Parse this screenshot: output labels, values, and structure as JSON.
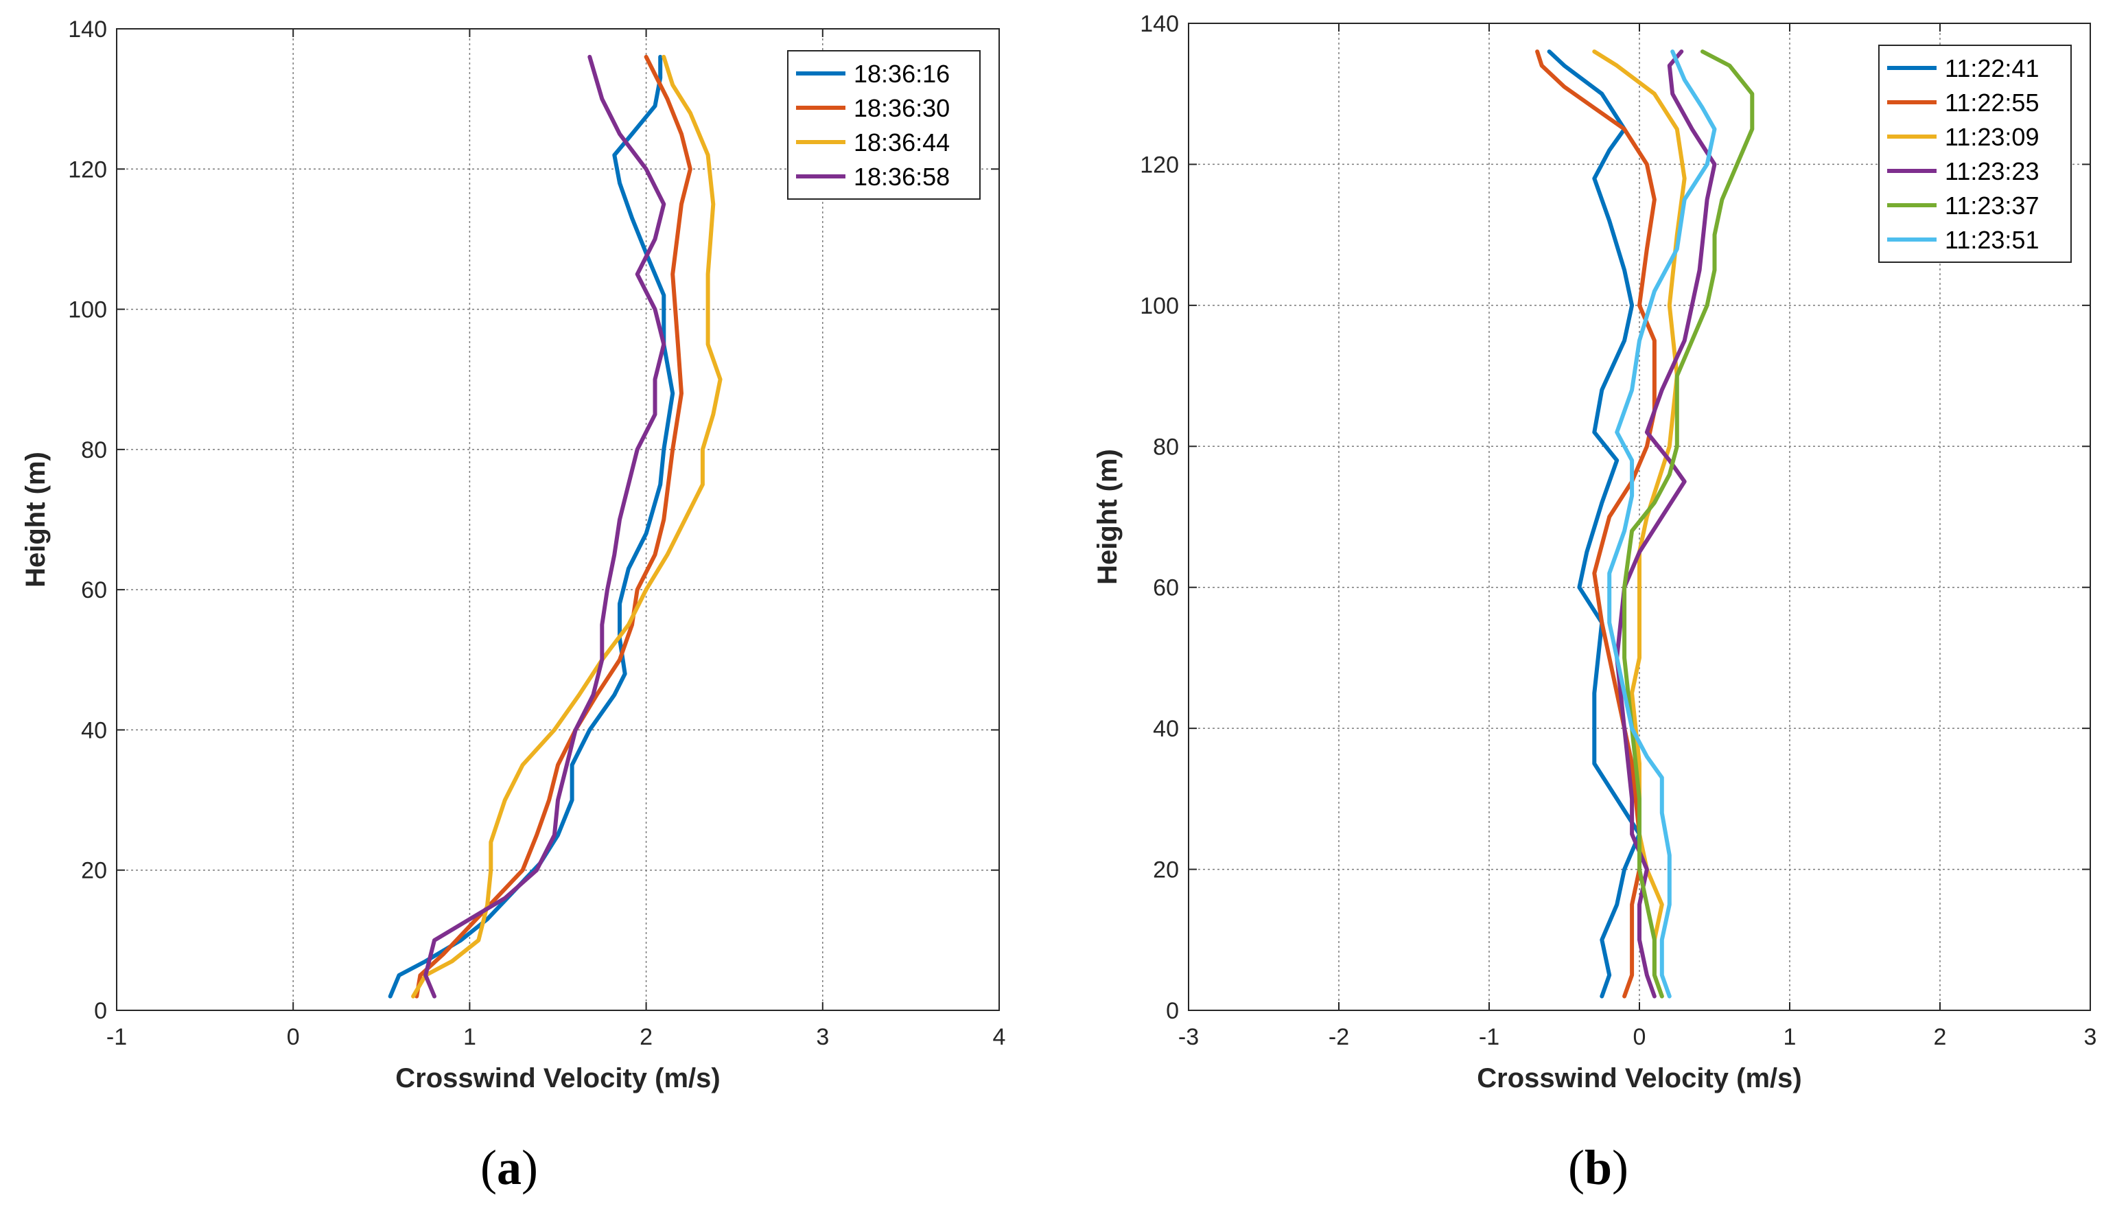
{
  "chart_data": [
    {
      "type": "line",
      "panel_label": "a",
      "xlabel": "Crosswind Velocity (m/s)",
      "ylabel": "Height (m)",
      "xlim": [
        -1,
        4
      ],
      "ylim": [
        0,
        140
      ],
      "xticks": [
        -1,
        0,
        1,
        2,
        3,
        4
      ],
      "yticks": [
        0,
        20,
        40,
        60,
        80,
        100,
        120,
        140
      ],
      "grid": true,
      "legend_position": "top-right",
      "series": [
        {
          "name": "18:36:16",
          "color": "#0072BD",
          "points": [
            [
              0.55,
              2
            ],
            [
              0.6,
              5
            ],
            [
              0.75,
              7
            ],
            [
              0.95,
              10
            ],
            [
              1.1,
              13
            ],
            [
              1.25,
              17
            ],
            [
              1.4,
              21
            ],
            [
              1.5,
              25
            ],
            [
              1.58,
              30
            ],
            [
              1.58,
              35
            ],
            [
              1.68,
              40
            ],
            [
              1.82,
              45
            ],
            [
              1.88,
              48
            ],
            [
              1.85,
              53
            ],
            [
              1.85,
              58
            ],
            [
              1.9,
              63
            ],
            [
              2.0,
              68
            ],
            [
              2.08,
              75
            ],
            [
              2.1,
              80
            ],
            [
              2.15,
              88
            ],
            [
              2.1,
              95
            ],
            [
              2.1,
              102
            ],
            [
              2.0,
              108
            ],
            [
              1.92,
              113
            ],
            [
              1.85,
              118
            ],
            [
              1.82,
              122
            ],
            [
              1.92,
              125
            ],
            [
              2.05,
              129
            ],
            [
              2.08,
              133
            ],
            [
              2.08,
              136
            ]
          ]
        },
        {
          "name": "18:36:30",
          "color": "#D95319",
          "points": [
            [
              0.7,
              2
            ],
            [
              0.72,
              5
            ],
            [
              0.85,
              8
            ],
            [
              1.0,
              12
            ],
            [
              1.15,
              16
            ],
            [
              1.3,
              20
            ],
            [
              1.38,
              25
            ],
            [
              1.45,
              30
            ],
            [
              1.5,
              35
            ],
            [
              1.6,
              40
            ],
            [
              1.72,
              45
            ],
            [
              1.85,
              50
            ],
            [
              1.92,
              55
            ],
            [
              1.95,
              60
            ],
            [
              2.05,
              65
            ],
            [
              2.1,
              70
            ],
            [
              2.15,
              80
            ],
            [
              2.2,
              88
            ],
            [
              2.18,
              95
            ],
            [
              2.15,
              105
            ],
            [
              2.2,
              115
            ],
            [
              2.25,
              120
            ],
            [
              2.2,
              125
            ],
            [
              2.12,
              130
            ],
            [
              2.0,
              136
            ]
          ]
        },
        {
          "name": "18:36:44",
          "color": "#EDB120",
          "points": [
            [
              0.68,
              2
            ],
            [
              0.75,
              5
            ],
            [
              0.9,
              7
            ],
            [
              1.05,
              10
            ],
            [
              1.1,
              15
            ],
            [
              1.12,
              20
            ],
            [
              1.12,
              24
            ],
            [
              1.2,
              30
            ],
            [
              1.3,
              35
            ],
            [
              1.48,
              40
            ],
            [
              1.62,
              45
            ],
            [
              1.75,
              50
            ],
            [
              1.9,
              55
            ],
            [
              2.0,
              60
            ],
            [
              2.12,
              65
            ],
            [
              2.22,
              70
            ],
            [
              2.32,
              75
            ],
            [
              2.32,
              80
            ],
            [
              2.38,
              85
            ],
            [
              2.42,
              90
            ],
            [
              2.35,
              95
            ],
            [
              2.35,
              105
            ],
            [
              2.38,
              115
            ],
            [
              2.35,
              122
            ],
            [
              2.25,
              128
            ],
            [
              2.15,
              132
            ],
            [
              2.1,
              136
            ]
          ]
        },
        {
          "name": "18:36:58",
          "color": "#7E2F8E",
          "points": [
            [
              0.8,
              2
            ],
            [
              0.75,
              5
            ],
            [
              0.8,
              10
            ],
            [
              1.0,
              13
            ],
            [
              1.2,
              16
            ],
            [
              1.38,
              20
            ],
            [
              1.48,
              25
            ],
            [
              1.5,
              30
            ],
            [
              1.55,
              35
            ],
            [
              1.6,
              40
            ],
            [
              1.7,
              45
            ],
            [
              1.75,
              50
            ],
            [
              1.75,
              55
            ],
            [
              1.78,
              60
            ],
            [
              1.82,
              65
            ],
            [
              1.85,
              70
            ],
            [
              1.95,
              80
            ],
            [
              2.05,
              85
            ],
            [
              2.05,
              90
            ],
            [
              2.1,
              95
            ],
            [
              2.05,
              100
            ],
            [
              1.95,
              105
            ],
            [
              2.05,
              110
            ],
            [
              2.1,
              115
            ],
            [
              2.0,
              120
            ],
            [
              1.85,
              125
            ],
            [
              1.75,
              130
            ],
            [
              1.68,
              136
            ]
          ]
        }
      ]
    },
    {
      "type": "line",
      "panel_label": "b",
      "xlabel": "Crosswind Velocity (m/s)",
      "ylabel": "Height (m)",
      "xlim": [
        -3,
        3
      ],
      "ylim": [
        0,
        140
      ],
      "xticks": [
        -3,
        -2,
        -1,
        0,
        1,
        2,
        3
      ],
      "yticks": [
        0,
        20,
        40,
        60,
        80,
        100,
        120,
        140
      ],
      "grid": true,
      "legend_position": "top-right",
      "series": [
        {
          "name": "11:22:41",
          "color": "#0072BD",
          "points": [
            [
              -0.25,
              2
            ],
            [
              -0.2,
              5
            ],
            [
              -0.25,
              10
            ],
            [
              -0.15,
              15
            ],
            [
              -0.1,
              20
            ],
            [
              0.0,
              25
            ],
            [
              -0.15,
              30
            ],
            [
              -0.3,
              35
            ],
            [
              -0.3,
              45
            ],
            [
              -0.25,
              55
            ],
            [
              -0.4,
              60
            ],
            [
              -0.35,
              65
            ],
            [
              -0.25,
              72
            ],
            [
              -0.15,
              78
            ],
            [
              -0.3,
              82
            ],
            [
              -0.25,
              88
            ],
            [
              -0.1,
              95
            ],
            [
              -0.05,
              100
            ],
            [
              -0.1,
              105
            ],
            [
              -0.2,
              112
            ],
            [
              -0.3,
              118
            ],
            [
              -0.2,
              122
            ],
            [
              -0.1,
              125
            ],
            [
              -0.25,
              130
            ],
            [
              -0.5,
              134
            ],
            [
              -0.6,
              136
            ]
          ]
        },
        {
          "name": "11:22:55",
          "color": "#D95319",
          "points": [
            [
              -0.1,
              2
            ],
            [
              -0.05,
              5
            ],
            [
              -0.05,
              10
            ],
            [
              -0.05,
              15
            ],
            [
              0.0,
              20
            ],
            [
              0.0,
              25
            ],
            [
              -0.05,
              35
            ],
            [
              -0.15,
              45
            ],
            [
              -0.25,
              55
            ],
            [
              -0.3,
              62
            ],
            [
              -0.2,
              70
            ],
            [
              -0.05,
              75
            ],
            [
              0.05,
              80
            ],
            [
              0.1,
              85
            ],
            [
              0.1,
              95
            ],
            [
              0.0,
              100
            ],
            [
              0.05,
              108
            ],
            [
              0.1,
              115
            ],
            [
              0.05,
              120
            ],
            [
              -0.1,
              125
            ],
            [
              -0.3,
              128
            ],
            [
              -0.5,
              131
            ],
            [
              -0.65,
              134
            ],
            [
              -0.68,
              136
            ]
          ]
        },
        {
          "name": "11:23:09",
          "color": "#EDB120",
          "points": [
            [
              0.15,
              2
            ],
            [
              0.1,
              5
            ],
            [
              0.1,
              10
            ],
            [
              0.15,
              15
            ],
            [
              0.05,
              20
            ],
            [
              0.0,
              25
            ],
            [
              0.0,
              35
            ],
            [
              -0.05,
              45
            ],
            [
              0.0,
              50
            ],
            [
              0.0,
              58
            ],
            [
              0.0,
              65
            ],
            [
              0.05,
              70
            ],
            [
              0.2,
              80
            ],
            [
              0.25,
              90
            ],
            [
              0.2,
              100
            ],
            [
              0.25,
              110
            ],
            [
              0.3,
              118
            ],
            [
              0.25,
              125
            ],
            [
              0.1,
              130
            ],
            [
              -0.15,
              134
            ],
            [
              -0.3,
              136
            ]
          ]
        },
        {
          "name": "11:23:23",
          "color": "#7E2F8E",
          "points": [
            [
              0.1,
              2
            ],
            [
              0.05,
              5
            ],
            [
              0.0,
              10
            ],
            [
              0.0,
              15
            ],
            [
              0.05,
              20
            ],
            [
              -0.05,
              25
            ],
            [
              -0.05,
              30
            ],
            [
              -0.1,
              40
            ],
            [
              -0.15,
              50
            ],
            [
              -0.1,
              60
            ],
            [
              0.0,
              65
            ],
            [
              0.15,
              70
            ],
            [
              0.3,
              75
            ],
            [
              0.2,
              78
            ],
            [
              0.05,
              82
            ],
            [
              0.15,
              88
            ],
            [
              0.3,
              95
            ],
            [
              0.4,
              105
            ],
            [
              0.45,
              115
            ],
            [
              0.5,
              120
            ],
            [
              0.35,
              125
            ],
            [
              0.22,
              130
            ],
            [
              0.2,
              134
            ],
            [
              0.28,
              136
            ]
          ]
        },
        {
          "name": "11:23:37",
          "color": "#77AC30",
          "points": [
            [
              0.15,
              2
            ],
            [
              0.1,
              5
            ],
            [
              0.1,
              10
            ],
            [
              0.05,
              15
            ],
            [
              0.0,
              20
            ],
            [
              0.0,
              30
            ],
            [
              -0.05,
              40
            ],
            [
              -0.1,
              50
            ],
            [
              -0.1,
              60
            ],
            [
              -0.05,
              68
            ],
            [
              0.1,
              72
            ],
            [
              0.2,
              76
            ],
            [
              0.25,
              80
            ],
            [
              0.25,
              90
            ],
            [
              0.35,
              95
            ],
            [
              0.45,
              100
            ],
            [
              0.5,
              105
            ],
            [
              0.5,
              110
            ],
            [
              0.55,
              115
            ],
            [
              0.65,
              120
            ],
            [
              0.75,
              125
            ],
            [
              0.75,
              130
            ],
            [
              0.6,
              134
            ],
            [
              0.42,
              136
            ]
          ]
        },
        {
          "name": "11:23:51",
          "color": "#4DBEEE",
          "points": [
            [
              0.2,
              2
            ],
            [
              0.15,
              5
            ],
            [
              0.15,
              10
            ],
            [
              0.2,
              15
            ],
            [
              0.2,
              22
            ],
            [
              0.15,
              28
            ],
            [
              0.15,
              33
            ],
            [
              0.05,
              36
            ],
            [
              -0.05,
              40
            ],
            [
              -0.1,
              45
            ],
            [
              -0.15,
              50
            ],
            [
              -0.2,
              55
            ],
            [
              -0.2,
              62
            ],
            [
              -0.1,
              68
            ],
            [
              -0.05,
              73
            ],
            [
              -0.05,
              78
            ],
            [
              -0.15,
              82
            ],
            [
              -0.05,
              88
            ],
            [
              0.0,
              95
            ],
            [
              0.1,
              102
            ],
            [
              0.25,
              108
            ],
            [
              0.3,
              115
            ],
            [
              0.45,
              120
            ],
            [
              0.5,
              125
            ],
            [
              0.42,
              128
            ],
            [
              0.3,
              132
            ],
            [
              0.22,
              136
            ]
          ]
        }
      ]
    }
  ]
}
